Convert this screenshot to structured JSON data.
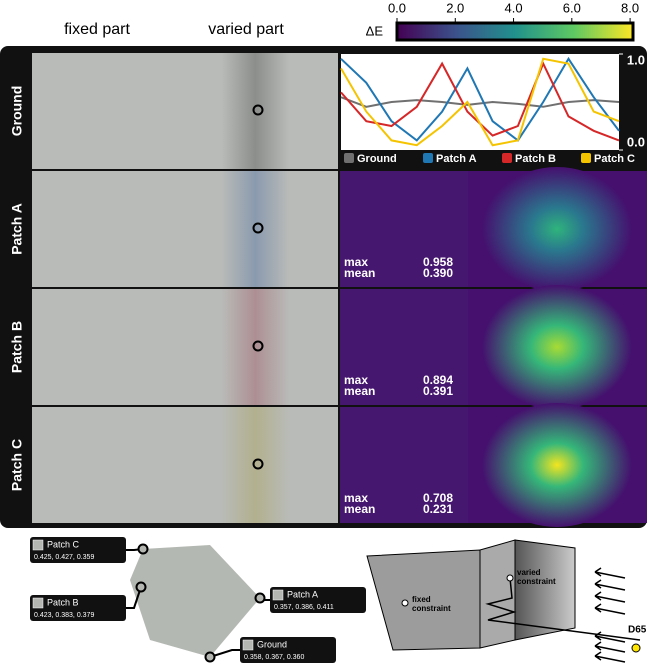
{
  "header": {
    "fixed": "fixed part",
    "varied": "varied part"
  },
  "colorbar": {
    "label": "ΔE",
    "lim": [
      0,
      8.1
    ],
    "ticks": [
      {
        "value": 0,
        "label": "0.0"
      },
      {
        "value": 2,
        "label": "2.0"
      },
      {
        "value": 4,
        "label": "4.0"
      },
      {
        "value": 6,
        "label": "6.0"
      },
      {
        "value": 8,
        "label": "8.0"
      }
    ]
  },
  "stat_labels": {
    "max": "max",
    "mean": "mean"
  },
  "rows": [
    {
      "label": "Ground"
    },
    {
      "label": "Patch A",
      "max": "0.958",
      "mean": "0.390"
    },
    {
      "label": "Patch B",
      "max": "0.894",
      "mean": "0.391"
    },
    {
      "label": "Patch C",
      "max": "0.708",
      "mean": "0.231"
    }
  ],
  "chart_data": {
    "type": "line",
    "ylim": [
      0,
      1
    ],
    "yticks": [
      {
        "value": 1,
        "label": "1.0"
      },
      {
        "value": 0,
        "label": "0.0"
      }
    ],
    "series": [
      {
        "name": "Ground",
        "color": "#707070",
        "values": [
          0.55,
          0.45,
          0.5,
          0.52,
          0.5,
          0.47,
          0.5,
          0.48,
          0.45,
          0.5,
          0.52,
          0.5
        ]
      },
      {
        "name": "Patch A",
        "color": "#1f77b4",
        "values": [
          0.95,
          0.7,
          0.3,
          0.1,
          0.4,
          0.85,
          0.3,
          0.1,
          0.5,
          0.95,
          0.55,
          0.2
        ]
      },
      {
        "name": "Patch B",
        "color": "#d62728",
        "values": [
          0.6,
          0.3,
          0.25,
          0.45,
          0.9,
          0.4,
          0.15,
          0.25,
          0.9,
          0.35,
          0.2,
          0.1
        ]
      },
      {
        "name": "Patch C",
        "color": "#f5c400",
        "values": [
          0.85,
          0.4,
          0.1,
          0.05,
          0.25,
          0.5,
          0.05,
          0.1,
          0.95,
          0.9,
          0.4,
          0.3
        ]
      }
    ]
  },
  "chromaticity": [
    {
      "label": "Patch C",
      "values": "0.425, 0.427, 0.359"
    },
    {
      "label": "Patch B",
      "values": "0.423, 0.383, 0.379"
    },
    {
      "label": "Patch A",
      "values": "0.357, 0.386, 0.411"
    },
    {
      "label": "Ground",
      "values": "0.358, 0.367, 0.360"
    }
  ],
  "scene": {
    "fixed": [
      "fixed",
      "constraint"
    ],
    "varied": [
      "varied",
      "constraint"
    ],
    "light": "D65"
  }
}
